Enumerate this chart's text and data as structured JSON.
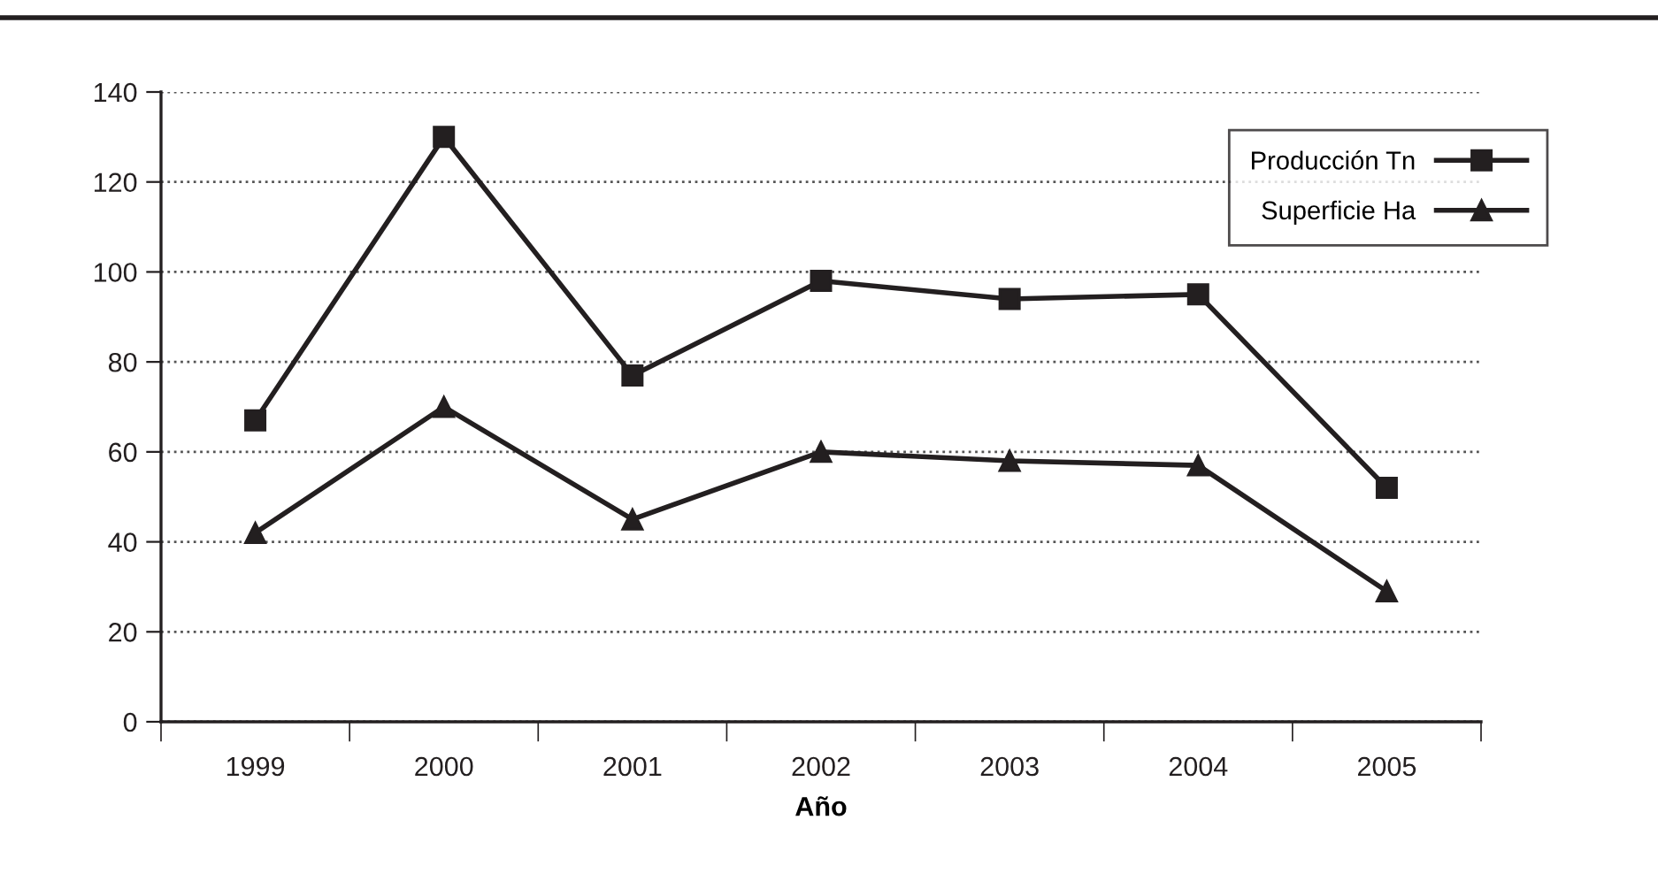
{
  "chart_data": {
    "type": "line",
    "xlabel": "Año",
    "categories": [
      "1999",
      "2000",
      "2001",
      "2002",
      "2003",
      "2004",
      "2005"
    ],
    "series": [
      {
        "name": "Producción Tn",
        "color": "#231f20",
        "marker": "square",
        "values": [
          67,
          130,
          77,
          98,
          94,
          95,
          52
        ]
      },
      {
        "name": "Superficie Ha",
        "color": "#231f20",
        "marker": "triangle",
        "values": [
          42,
          70,
          45,
          60,
          58,
          57,
          29
        ]
      }
    ],
    "ylim": [
      0,
      140
    ],
    "yticks": [
      0,
      20,
      40,
      60,
      80,
      100,
      120,
      140
    ],
    "grid": "y",
    "legend": "top right",
    "line_style": "solid"
  }
}
